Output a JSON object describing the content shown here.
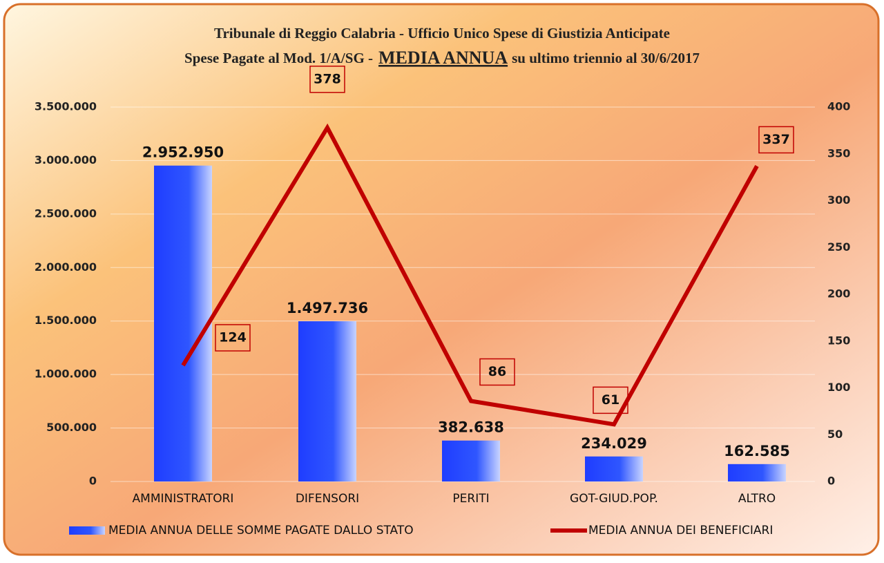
{
  "chart_data": {
    "type": "bar-line",
    "title": "Tribunale di Reggio Calabria - Ufficio Unico Spese di Giustizia Anticipate",
    "subtitle": [
      "Spese Pagate al Mod. 1/A/SG -",
      "MEDIA ANNUA",
      "su ultimo triennio al 30/6/2017"
    ],
    "categories": [
      "AMMINISTRATORI",
      "DIFENSORI",
      "PERITI",
      "GOT-GIUD.POP.",
      "ALTRO"
    ],
    "series": [
      {
        "name": "MEDIA ANNUA DELLE SOMME PAGATE DALLO STATO",
        "type": "bar",
        "color": "#1f3dff",
        "values": [
          2952950,
          1497736,
          382638,
          234029,
          162585
        ],
        "value_labels": [
          "2.952.950",
          "1.497.736",
          "382.638",
          "234.029",
          "162.585"
        ]
      },
      {
        "name": "MEDIA ANNUA DEI BENEFICIARI",
        "type": "line",
        "axis": "y2",
        "color": "#c00000",
        "values": [
          124,
          378,
          86,
          61,
          337
        ]
      }
    ],
    "ylim": [
      0,
      3500000
    ],
    "yticks": [
      0,
      {
        "value": 500000,
        "label": "500.000"
      },
      {
        "value": 1000000,
        "label": "1.000.000"
      },
      {
        "value": 1500000,
        "label": "1.500.000"
      },
      {
        "value": 2000000,
        "label": "2.000.000"
      },
      {
        "value": 2500000,
        "label": "2.500.000"
      },
      {
        "value": 3000000,
        "label": "3.000.000"
      },
      {
        "value": 3500000,
        "label": "3.500.000"
      }
    ],
    "y2lim": [
      0,
      400
    ],
    "y2ticks": [
      0,
      50,
      100,
      150,
      200,
      250,
      300,
      350,
      400
    ],
    "grid": true,
    "legend": "bottom"
  }
}
